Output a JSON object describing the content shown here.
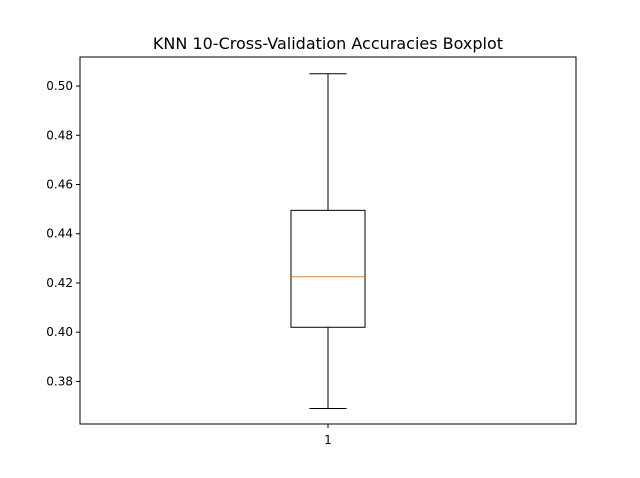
{
  "chart_data": {
    "type": "boxplot",
    "title": "KNN 10-Cross-Validation Accuracies Boxplot",
    "xlabel": "",
    "ylabel": "",
    "categories": [
      "1"
    ],
    "boxes": [
      {
        "category": "1",
        "whisker_low": 0.369,
        "q1": 0.402,
        "median": 0.4225,
        "q3": 0.4495,
        "whisker_high": 0.505
      }
    ],
    "ylim": [
      0.3627,
      0.5118
    ],
    "yticks": [
      0.38,
      0.4,
      0.42,
      0.44,
      0.46,
      0.48,
      0.5
    ],
    "ytick_labels": [
      "0.38",
      "0.40",
      "0.42",
      "0.44",
      "0.46",
      "0.48",
      "0.50"
    ],
    "grid": false,
    "colors": {
      "box": "#000000",
      "median": "#ff7f0e"
    }
  }
}
